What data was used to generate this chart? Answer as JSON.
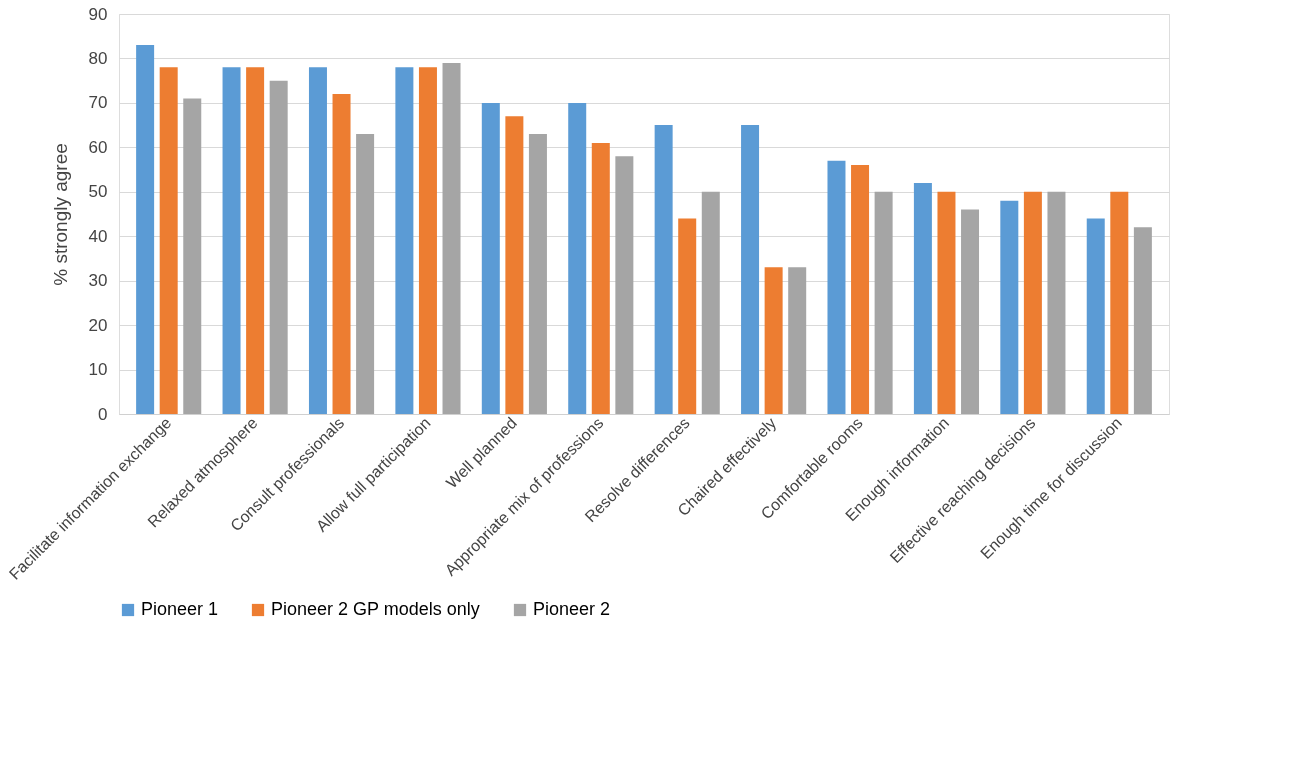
{
  "chart_data": {
    "type": "bar",
    "ylabel": "% strongly agree",
    "categories": [
      "Facilitate information exchange",
      "Relaxed atmosphere",
      "Consult professionals",
      "Allow full participation",
      "Well planned",
      "Appropriate mix of professions",
      "Resolve differences",
      "Chaired effectively",
      "Comfortable rooms",
      "Enough information",
      "Effective reaching decisions",
      "Enough time for discussion"
    ],
    "series": [
      {
        "name": "Pioneer 1",
        "color": "#5b9bd5",
        "values": [
          83,
          78,
          78,
          78,
          70,
          70,
          65,
          65,
          57,
          52,
          48,
          44
        ]
      },
      {
        "name": "Pioneer 2 GP models only",
        "color": "#ed7d31",
        "values": [
          78,
          78,
          72,
          78,
          67,
          61,
          44,
          33,
          56,
          50,
          50,
          50
        ]
      },
      {
        "name": "Pioneer 2",
        "color": "#a5a5a5",
        "values": [
          71,
          75,
          63,
          79,
          63,
          58,
          50,
          33,
          50,
          46,
          50,
          42
        ]
      }
    ],
    "ylim": [
      0,
      90
    ],
    "yticks": [
      0,
      10,
      20,
      30,
      40,
      50,
      60,
      70,
      80,
      90
    ],
    "grid": "y",
    "legend": "bottom"
  }
}
